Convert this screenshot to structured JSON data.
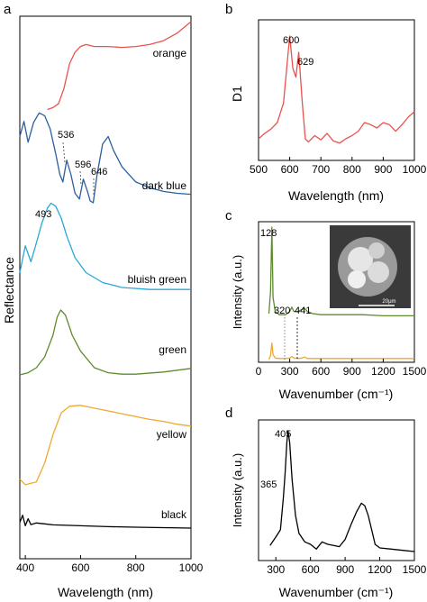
{
  "figure": {
    "panels": [
      {
        "id": "a",
        "label": "a"
      },
      {
        "id": "b",
        "label": "b"
      },
      {
        "id": "c",
        "label": "c"
      },
      {
        "id": "d",
        "label": "d"
      }
    ]
  },
  "chart_data": [
    {
      "panel": "a",
      "type": "line",
      "xlabel": "Wavelength (nm)",
      "ylabel": "Reflectance",
      "xlim": [
        380,
        1000
      ],
      "xticks": [
        "400",
        "600",
        "800",
        "1000"
      ],
      "xtick_values": [
        400,
        600,
        800,
        1000
      ],
      "stacked_offset": true,
      "grid": false,
      "series": [
        {
          "name": "orange",
          "color": "#e8534e",
          "x": [
            480,
            500,
            520,
            540,
            560,
            580,
            600,
            620,
            650,
            700,
            750,
            800,
            850,
            900,
            950,
            1000
          ],
          "y": [
            0.08,
            0.1,
            0.14,
            0.3,
            0.56,
            0.68,
            0.74,
            0.76,
            0.74,
            0.74,
            0.73,
            0.74,
            0.76,
            0.8,
            0.88,
            1.0
          ]
        },
        {
          "name": "dark blue",
          "color": "#2b5f9e",
          "x": [
            380,
            395,
            410,
            430,
            450,
            470,
            490,
            510,
            525,
            536,
            550,
            565,
            580,
            596,
            610,
            625,
            635,
            646,
            660,
            680,
            700,
            720,
            750,
            800,
            850,
            900,
            950,
            1000
          ],
          "y": [
            0.7,
            0.86,
            0.64,
            0.85,
            0.95,
            0.92,
            0.78,
            0.52,
            0.3,
            0.22,
            0.45,
            0.3,
            0.1,
            0.04,
            0.25,
            0.12,
            0.02,
            0.0,
            0.3,
            0.62,
            0.7,
            0.55,
            0.38,
            0.22,
            0.16,
            0.12,
            0.1,
            0.09
          ]
        },
        {
          "name": "bluish green",
          "color": "#29a8d8",
          "x": [
            380,
            400,
            420,
            440,
            460,
            480,
            493,
            510,
            530,
            550,
            580,
            620,
            680,
            750,
            850,
            1000
          ],
          "y": [
            0.25,
            0.52,
            0.36,
            0.55,
            0.75,
            0.9,
            0.95,
            0.92,
            0.8,
            0.62,
            0.4,
            0.25,
            0.15,
            0.1,
            0.08,
            0.08
          ]
        },
        {
          "name": "green",
          "color": "#5d8b2e",
          "x": [
            380,
            410,
            440,
            470,
            500,
            515,
            528,
            545,
            570,
            600,
            650,
            700,
            750,
            800,
            900,
            1000
          ],
          "y": [
            0.05,
            0.08,
            0.15,
            0.3,
            0.6,
            0.85,
            0.95,
            0.88,
            0.6,
            0.38,
            0.15,
            0.08,
            0.06,
            0.06,
            0.09,
            0.14
          ]
        },
        {
          "name": "yellow",
          "color": "#f0a830",
          "x": [
            380,
            400,
            440,
            470,
            500,
            530,
            560,
            600,
            650,
            700,
            750,
            800,
            850,
            900,
            950,
            1000
          ],
          "y": [
            0.08,
            0.02,
            0.05,
            0.25,
            0.55,
            0.78,
            0.85,
            0.86,
            0.83,
            0.8,
            0.77,
            0.74,
            0.71,
            0.69,
            0.66,
            0.64
          ]
        },
        {
          "name": "black",
          "color": "#000000",
          "x": [
            380,
            390,
            400,
            410,
            420,
            440,
            470,
            500,
            600,
            700,
            800,
            900,
            1000
          ],
          "y": [
            0.25,
            0.55,
            0.1,
            0.4,
            0.15,
            0.22,
            0.18,
            0.14,
            0.1,
            0.06,
            0.04,
            0.02,
            0.0
          ]
        }
      ],
      "annotations": [
        {
          "text": "536",
          "x": 536
        },
        {
          "text": "596",
          "x": 596
        },
        {
          "text": "646",
          "x": 646
        },
        {
          "text": "493",
          "x": 493
        }
      ]
    },
    {
      "panel": "b",
      "type": "line",
      "xlabel": "Wavelength (nm)",
      "ylabel": "D1",
      "xlim": [
        500,
        1000
      ],
      "xticks": [
        "500",
        "600",
        "700",
        "800",
        "900",
        "1000"
      ],
      "xtick_values": [
        500,
        600,
        700,
        800,
        900,
        1000
      ],
      "series": [
        {
          "color": "#e8534e",
          "x": [
            500,
            520,
            540,
            560,
            580,
            595,
            600,
            610,
            620,
            629,
            640,
            650,
            660,
            680,
            700,
            720,
            740,
            760,
            780,
            800,
            820,
            840,
            860,
            880,
            900,
            920,
            940,
            960,
            980,
            1000
          ],
          "y": [
            0.05,
            0.1,
            0.14,
            0.2,
            0.38,
            0.85,
            1.0,
            0.7,
            0.62,
            0.85,
            0.4,
            0.05,
            0.02,
            0.08,
            0.04,
            0.1,
            0.03,
            0.01,
            0.05,
            0.08,
            0.12,
            0.2,
            0.18,
            0.15,
            0.2,
            0.18,
            0.12,
            0.18,
            0.25,
            0.3
          ]
        }
      ],
      "annotations": [
        {
          "text": "600",
          "x": 600
        },
        {
          "text": "629",
          "x": 629
        }
      ]
    },
    {
      "panel": "c",
      "type": "line",
      "xlabel": "Wavenumber (cm⁻¹)",
      "ylabel": "Intensity (a.u.)",
      "xlim": [
        0,
        1500
      ],
      "xticks": [
        "0",
        "300",
        "600",
        "900",
        "1200",
        "1500"
      ],
      "xtick_values": [
        0,
        300,
        600,
        900,
        1200,
        1500
      ],
      "series": [
        {
          "color": "#5d8b2e",
          "x": [
            100,
            115,
            128,
            140,
            160,
            200,
            260,
            300,
            320,
            340,
            380,
            420,
            441,
            470,
            520,
            600,
            800,
            1000,
            1200,
            1500
          ],
          "y": [
            0.2,
            0.4,
            1.0,
            0.35,
            0.22,
            0.19,
            0.19,
            0.22,
            0.26,
            0.22,
            0.22,
            0.24,
            0.25,
            0.22,
            0.2,
            0.19,
            0.19,
            0.19,
            0.18,
            0.18
          ]
        },
        {
          "color": "#f0a830",
          "x": [
            100,
            115,
            128,
            140,
            160,
            200,
            260,
            300,
            320,
            340,
            380,
            420,
            441,
            470,
            520,
            600,
            800,
            1000,
            1200,
            1500
          ],
          "y": [
            0.02,
            0.1,
            0.35,
            0.12,
            0.05,
            0.04,
            0.04,
            0.05,
            0.08,
            0.05,
            0.04,
            0.05,
            0.07,
            0.04,
            0.04,
            0.04,
            0.04,
            0.04,
            0.04,
            0.04
          ]
        }
      ],
      "annotations": [
        {
          "text": "128",
          "x": 128
        },
        {
          "text": "320",
          "x": 320
        },
        {
          "text": "441",
          "x": 441
        }
      ],
      "inset": {
        "scale_bar": "20μm"
      }
    },
    {
      "panel": "d",
      "type": "line",
      "xlabel": "Wavenumber (cm⁻¹)",
      "ylabel": "Intensity (a.u.)",
      "xlim": [
        150,
        1500
      ],
      "xticks": [
        "300",
        "600",
        "900",
        "1200",
        "1500"
      ],
      "xtick_values": [
        300,
        600,
        900,
        1200,
        1500
      ],
      "series": [
        {
          "color": "#000000",
          "x": [
            250,
            300,
            340,
            365,
            380,
            395,
            405,
            420,
            440,
            470,
            500,
            550,
            600,
            650,
            700,
            750,
            800,
            850,
            900,
            950,
            1000,
            1040,
            1070,
            1100,
            1130,
            1160,
            1200,
            1300,
            1400,
            1500
          ],
          "y": [
            0.05,
            0.12,
            0.18,
            0.45,
            0.65,
            0.9,
            1.0,
            0.9,
            0.6,
            0.3,
            0.15,
            0.08,
            0.06,
            0.02,
            0.08,
            0.06,
            0.05,
            0.04,
            0.1,
            0.22,
            0.33,
            0.4,
            0.38,
            0.3,
            0.18,
            0.06,
            0.03,
            0.02,
            0.01,
            0.0
          ]
        }
      ],
      "annotations": [
        {
          "text": "405",
          "x": 405
        },
        {
          "text": "365",
          "x": 365
        }
      ]
    }
  ]
}
